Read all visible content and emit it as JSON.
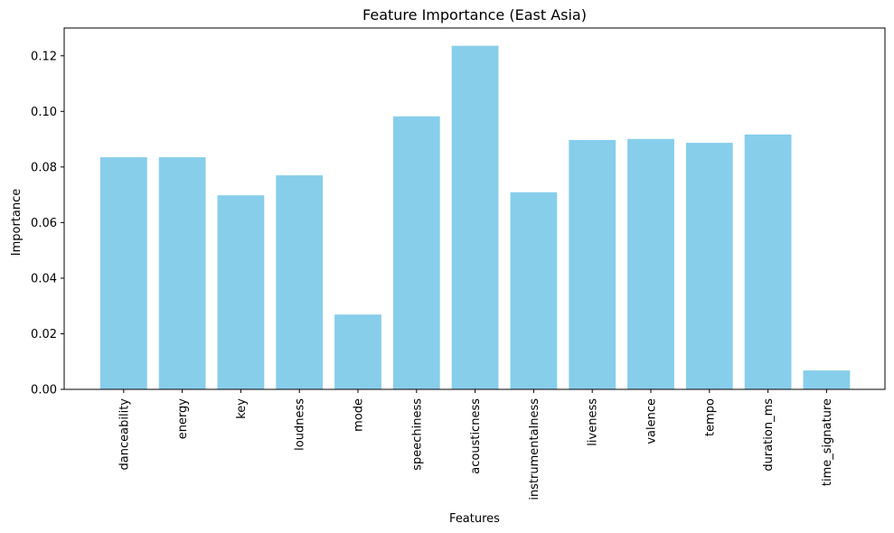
{
  "chart_data": {
    "type": "bar",
    "title": "Feature Importance (East Asia)",
    "xlabel": "Features",
    "ylabel": "Importance",
    "categories": [
      "danceability",
      "energy",
      "key",
      "loudness",
      "mode",
      "speechiness",
      "acousticness",
      "instrumentalness",
      "liveness",
      "valence",
      "tempo",
      "duration_ms",
      "time_signature"
    ],
    "values": [
      0.0835,
      0.0835,
      0.0698,
      0.077,
      0.0269,
      0.0982,
      0.1236,
      0.0709,
      0.0897,
      0.0901,
      0.0887,
      0.0917,
      0.0068
    ],
    "ylim": [
      0,
      0.13
    ],
    "yticks": [
      "0.00",
      "0.02",
      "0.04",
      "0.06",
      "0.08",
      "0.10",
      "0.12"
    ],
    "bar_color": "#87ceeb",
    "grid": false,
    "legend": "none"
  }
}
